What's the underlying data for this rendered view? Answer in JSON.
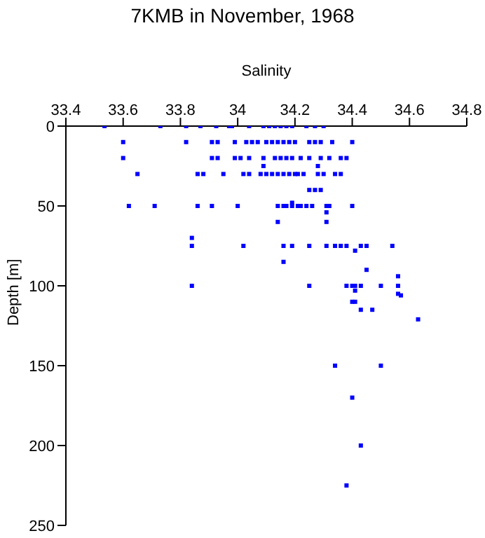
{
  "chart_data": {
    "type": "scatter",
    "title": "7KMB in November, 1968",
    "xlabel": "Salinity",
    "ylabel": "Depth [m]",
    "xlim": [
      33.4,
      34.8
    ],
    "xticks": [
      {
        "value": 33.4,
        "label": "33.4"
      },
      {
        "value": 33.6,
        "label": "33.6"
      },
      {
        "value": 33.8,
        "label": "33.8"
      },
      {
        "value": 34,
        "label": "34"
      },
      {
        "value": 34.2,
        "label": "34.2"
      },
      {
        "value": 34.4,
        "label": "34.4"
      },
      {
        "value": 34.6,
        "label": "34.6"
      },
      {
        "value": 34.8,
        "label": "34.8"
      }
    ],
    "ylim": [
      250,
      0
    ],
    "yticks": [
      0,
      50,
      100,
      150,
      200,
      250
    ],
    "grid": false,
    "marker": "square",
    "series": [
      {
        "color": "#0000ff",
        "x": [
          33.535,
          33.73,
          33.82,
          33.87,
          33.925,
          33.97,
          33.98,
          34.04,
          34.09,
          34.11,
          34.13,
          34.15,
          34.17,
          34.19,
          34.24,
          34.27,
          34.3,
          33.6,
          33.82,
          33.91,
          33.93,
          33.99,
          34.03,
          34.05,
          34.07,
          34.1,
          34.12,
          34.14,
          34.16,
          34.18,
          34.2,
          34.25,
          34.27,
          34.29,
          34.33,
          34.4,
          33.6,
          33.91,
          33.93,
          33.99,
          34.01,
          34.04,
          34.09,
          34.13,
          34.15,
          34.17,
          34.19,
          34.22,
          34.25,
          34.29,
          34.32,
          34.36,
          34.38,
          34.09,
          34.28,
          33.65,
          33.86,
          33.88,
          33.95,
          34.02,
          34.04,
          34.08,
          34.1,
          34.12,
          34.14,
          34.16,
          34.18,
          34.2,
          34.21,
          34.23,
          34.28,
          34.3,
          34.34,
          34.36,
          34.25,
          34.27,
          34.29,
          33.62,
          33.71,
          33.86,
          33.91,
          34.0,
          34.14,
          34.16,
          34.17,
          34.19,
          34.21,
          34.22,
          34.24,
          34.26,
          34.31,
          34.32,
          34.4,
          34.19,
          34.31,
          34.14,
          34.31,
          33.84,
          33.84,
          34.02,
          34.16,
          34.19,
          34.25,
          34.31,
          34.34,
          34.36,
          34.38,
          34.43,
          34.45,
          34.54,
          34.41,
          34.16,
          34.45,
          34.56,
          33.84,
          34.25,
          34.38,
          34.4,
          34.41,
          34.43,
          34.5,
          34.56,
          34.41,
          34.56,
          34.57,
          34.4,
          34.41,
          34.43,
          34.47,
          34.63,
          34.34,
          34.5,
          34.4,
          34.43,
          34.38
        ],
        "values": [
          0,
          0,
          0,
          0,
          0,
          0,
          0,
          0,
          0,
          0,
          0,
          0,
          0,
          0,
          0,
          0,
          0,
          10,
          10,
          10,
          10,
          10,
          10,
          10,
          10,
          10,
          10,
          10,
          10,
          10,
          10,
          10,
          10,
          10,
          10,
          10,
          20,
          20,
          20,
          20,
          20,
          20,
          20,
          20,
          20,
          20,
          20,
          20,
          20,
          20,
          20,
          20,
          20,
          25,
          25,
          30,
          30,
          30,
          30,
          30,
          30,
          30,
          30,
          30,
          30,
          30,
          30,
          30,
          30,
          30,
          30,
          30,
          30,
          30,
          40,
          40,
          40,
          50,
          50,
          50,
          50,
          50,
          50,
          50,
          50,
          50,
          50,
          50,
          50,
          50,
          50,
          50,
          50,
          48,
          54,
          60,
          60,
          70,
          75,
          75,
          75,
          75,
          75,
          75,
          75,
          75,
          75,
          75,
          75,
          75,
          78,
          85,
          90,
          94,
          100,
          100,
          100,
          100,
          100,
          100,
          100,
          100,
          103,
          105,
          106,
          110,
          110,
          115,
          115,
          121,
          150,
          150,
          170,
          200,
          225
        ]
      }
    ]
  }
}
